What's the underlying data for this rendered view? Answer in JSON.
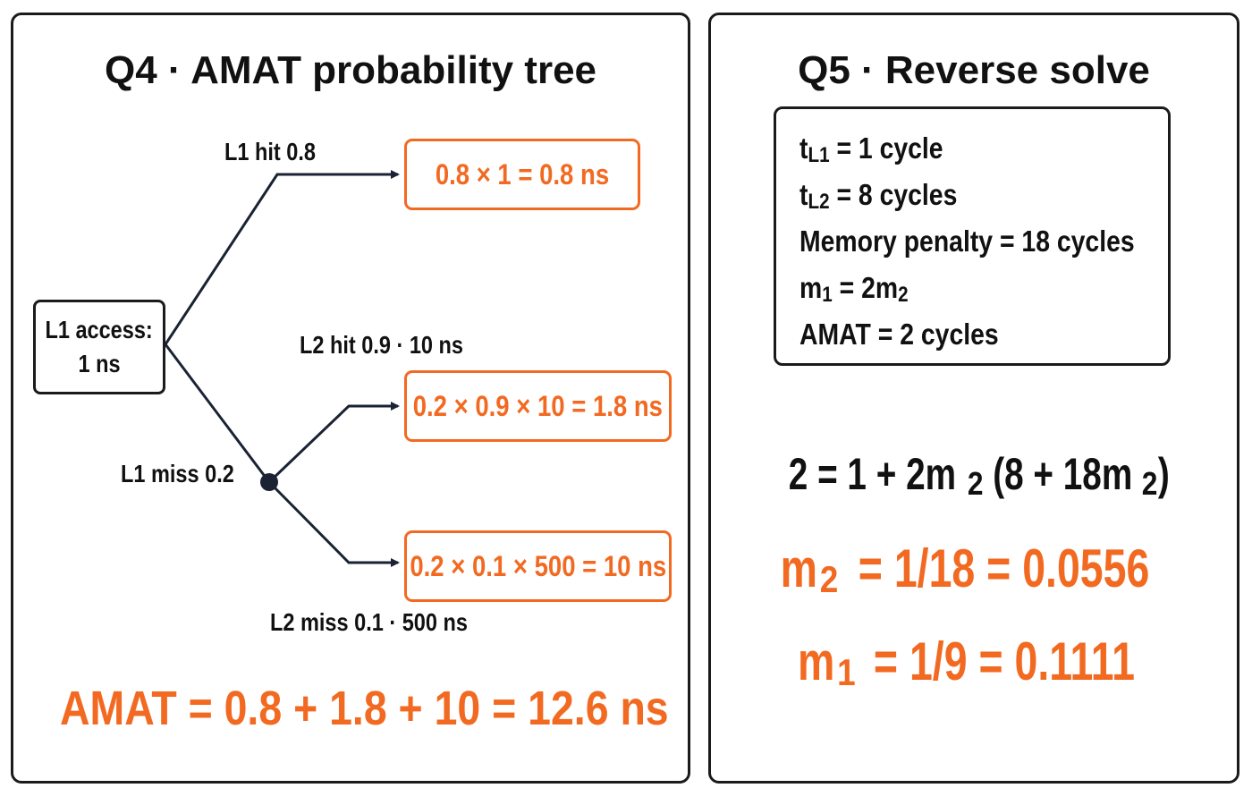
{
  "q4": {
    "title": "Q4 · AMAT probability tree",
    "root": {
      "line1": "L1 access:",
      "line2": "1 ns"
    },
    "labels": {
      "l1_hit": "L1 hit 0.8",
      "l1_miss": "L1 miss 0.2",
      "l2_hit": "L2 hit 0.9 · 10 ns",
      "l2_miss": "L2 miss 0.1 · 500 ns"
    },
    "leaves": {
      "l1_hit": "0.8 × 1 = 0.8 ns",
      "l2_hit": "0.2 × 0.9 × 10 = 1.8 ns",
      "l2_miss": "0.2 × 0.1 × 500 = 10 ns"
    },
    "amat": "AMAT = 0.8 + 1.8 + 10 = 12.6 ns"
  },
  "q5": {
    "title": "Q5 · Reverse solve",
    "givens": {
      "tl1": {
        "sym": "t",
        "sub": "L1",
        "rest": " = 1 cycle"
      },
      "tl2": {
        "sym": "t",
        "sub": "L2",
        "rest": " = 8 cycles"
      },
      "mem": "Memory penalty = 18 cycles",
      "m1": {
        "sym": "m",
        "sub": "1",
        "mid": " = 2m",
        "sub2": "2"
      },
      "amat": "AMAT = 2 cycles"
    },
    "equation": {
      "a": "2 = 1 + 2m",
      "s1": "2",
      "b": "(8 + 18m",
      "s2": "2",
      "c": ")"
    },
    "result_m2": {
      "sym": "m",
      "sub": "2",
      "rest": " = 1/18 = 0.0556"
    },
    "result_m1": {
      "sym": "m",
      "sub": "1",
      "rest": " = 1/9 = 0.1111"
    }
  },
  "colors": {
    "accent": "#f26a21",
    "ink": "#1b1b1b",
    "edge": "#1a2233"
  }
}
